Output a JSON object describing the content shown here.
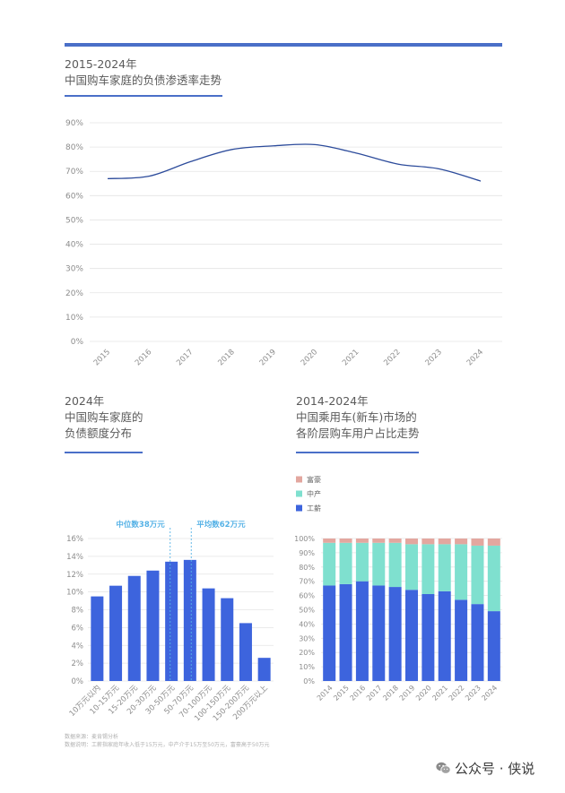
{
  "page": {
    "accent_color": "#4a6fc8",
    "background": "#ffffff"
  },
  "chart_data": [
    {
      "type": "line",
      "title_lines": [
        "2015-2024年",
        "中国购车家庭的负债渗透率走势"
      ],
      "x": [
        "2015",
        "2016",
        "2017",
        "2018",
        "2019",
        "2020",
        "2021",
        "2022",
        "2023",
        "2024"
      ],
      "series": [
        {
          "values": [
            67,
            68,
            74,
            79,
            80.5,
            81,
            77.5,
            73,
            71,
            66
          ],
          "color": "#2c4b9b"
        }
      ],
      "ylim": [
        0,
        90
      ],
      "y_ticks": [
        "0%",
        "10%",
        "20%",
        "30%",
        "40%",
        "50%",
        "60%",
        "70%",
        "80%",
        "90%"
      ],
      "grid": true,
      "smooth": true
    },
    {
      "type": "bar",
      "title_lines": [
        "2024年",
        "中国购车家庭的",
        "负债额度分布"
      ],
      "categories": [
        "10万元以内",
        "10-15万元",
        "15-20万元",
        "20-30万元",
        "30-50万元",
        "50-70万元",
        "70-100万元",
        "100-150万元",
        "150-200万元",
        "200万元以上"
      ],
      "values": [
        9.5,
        10.7,
        11.8,
        12.4,
        13.4,
        13.6,
        10.4,
        9.3,
        6.5,
        2.6
      ],
      "ylim": [
        0,
        16
      ],
      "y_ticks": [
        "0%",
        "2%",
        "4%",
        "6%",
        "8%",
        "10%",
        "12%",
        "14%",
        "16%"
      ],
      "grid": true,
      "bar_color": "#3d64dd",
      "annotations": [
        {
          "text": "中位数38万元",
          "value": 38,
          "category": "30-50万元"
        },
        {
          "text": "平均数62万元",
          "value": 62,
          "category": "50-70万元"
        }
      ],
      "annotation_color": "#56b2e6"
    },
    {
      "type": "bar",
      "stacked": true,
      "title_lines": [
        "2014-2024年",
        "中国乘用车(新车)市场的",
        "各阶层购车用户占比走势"
      ],
      "categories": [
        "2014",
        "2015",
        "2016",
        "2017",
        "2018",
        "2019",
        "2020",
        "2021",
        "2022",
        "2023",
        "2024"
      ],
      "series": [
        {
          "name": "工薪",
          "values": [
            67,
            68,
            70,
            67,
            66,
            64,
            61,
            63,
            57,
            54,
            49
          ],
          "color": "#3d64dd"
        },
        {
          "name": "中产",
          "values": [
            30,
            29,
            27,
            30,
            31,
            32,
            35,
            33,
            39,
            41,
            46
          ],
          "color": "#7fe0cf"
        },
        {
          "name": "富豪",
          "values": [
            3,
            3,
            3,
            3,
            3,
            4,
            4,
            4,
            4,
            5,
            5
          ],
          "color": "#e3a79f"
        }
      ],
      "ylim": [
        0,
        100
      ],
      "y_ticks": [
        "0%",
        "10%",
        "20%",
        "30%",
        "40%",
        "50%",
        "60%",
        "70%",
        "80%",
        "90%",
        "100%"
      ],
      "grid": true,
      "legend": "top-left"
    }
  ],
  "footnote": {
    "source": "数据来源：麦肯锡分析",
    "note": "数据说明：工薪指家庭年收入低于15万元，中产介于15万至50万元，富豪高于50万元"
  },
  "watermark": {
    "text": "公众号 · 侠说",
    "icon": "wechat-icon"
  }
}
